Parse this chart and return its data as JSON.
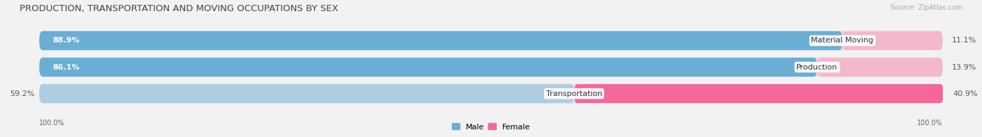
{
  "title": "PRODUCTION, TRANSPORTATION AND MOVING OCCUPATIONS BY SEX",
  "source": "Source: ZipAtlas.com",
  "categories": [
    "Material Moving",
    "Production",
    "Transportation"
  ],
  "male_pct": [
    88.9,
    86.1,
    59.2
  ],
  "female_pct": [
    11.1,
    13.9,
    40.9
  ],
  "male_label_pct": [
    "88.9%",
    "86.1%",
    "59.2%"
  ],
  "female_label_pct": [
    "11.1%",
    "13.9%",
    "40.9%"
  ],
  "male_color_rows": [
    "#6aaed6",
    "#6aaed6",
    "#aecde2"
  ],
  "female_color_rows": [
    "#f4b8cb",
    "#f4b8cb",
    "#f4679d"
  ],
  "bg_color": "#f2f2f2",
  "bar_bg_color": "#e0e0e8",
  "title_fontsize": 9.5,
  "source_fontsize": 7,
  "label_fontsize": 8,
  "legend_fontsize": 8,
  "bottom_labels": [
    "100.0%",
    "100.0%"
  ],
  "figsize": [
    14.06,
    1.97
  ],
  "dpi": 100
}
